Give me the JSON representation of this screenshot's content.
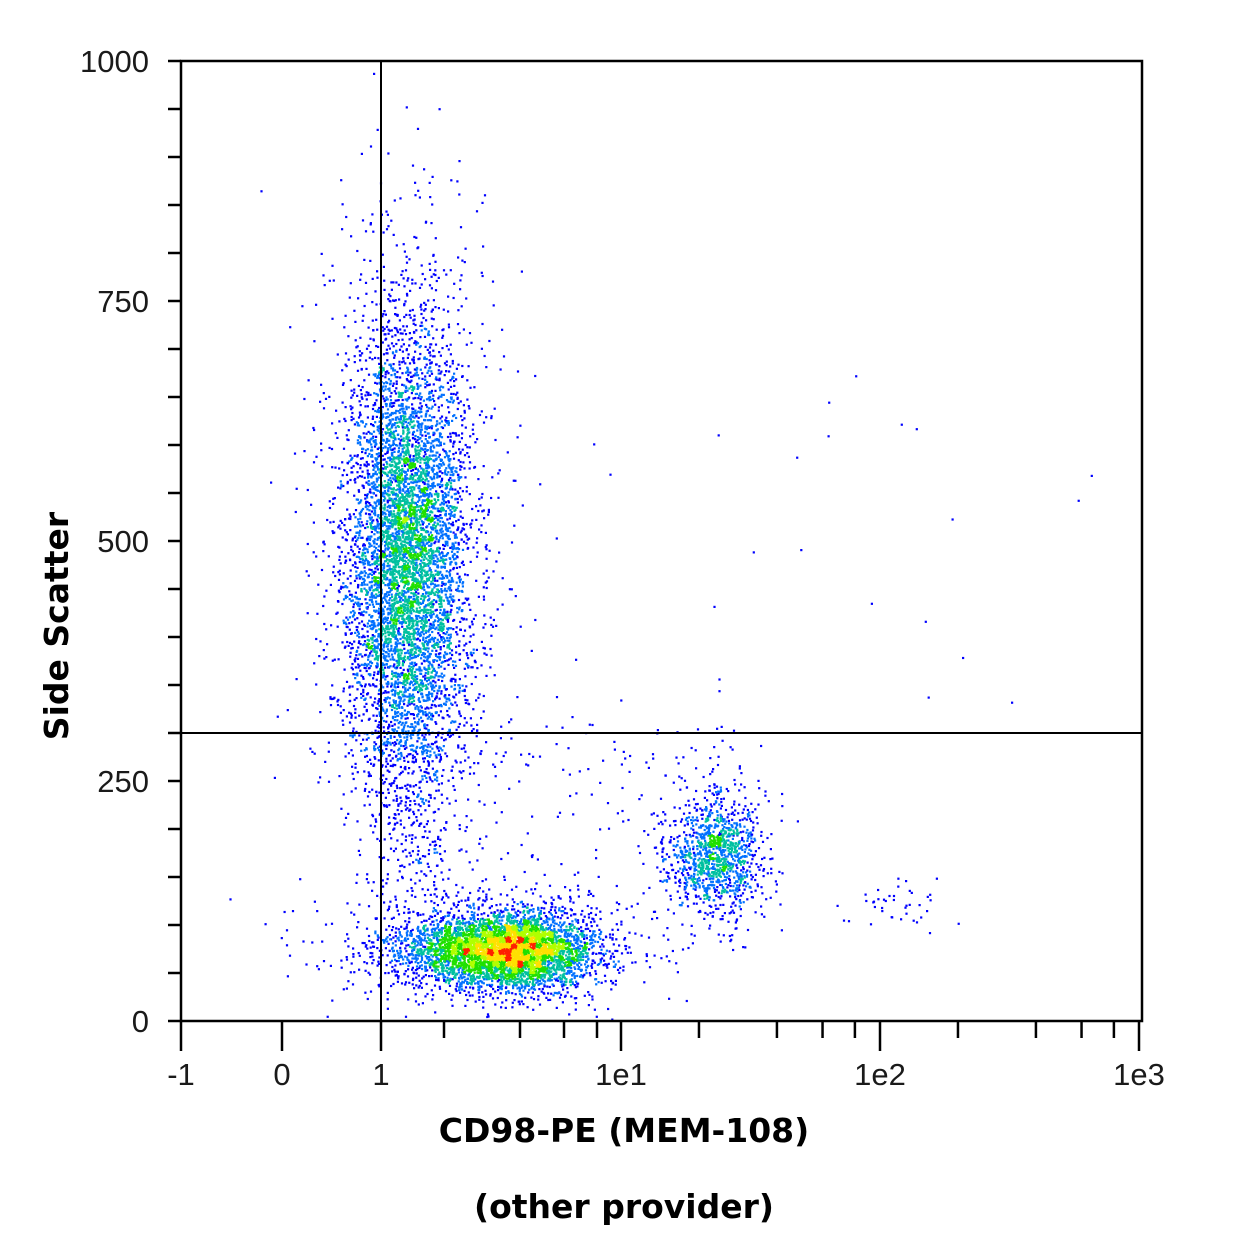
{
  "chart_data": {
    "type": "scatter",
    "style": "density-colored flow cytometry dot plot",
    "xlabel": "CD98-PE (MEM-108)",
    "xlabel_line2": "(other provider)",
    "ylabel": "Side Scatter",
    "xlim": [
      -1,
      1000
    ],
    "ylim": [
      0,
      1000
    ],
    "x_scale": "logicle (linear near 0, log above 10)",
    "x_ticks": [
      {
        "value": -1,
        "label": "-1"
      },
      {
        "value": 0,
        "label": "0"
      },
      {
        "value": 1,
        "label": "1"
      },
      {
        "value": 10,
        "label": "1e1"
      },
      {
        "value": 100,
        "label": "1e2"
      },
      {
        "value": 1000,
        "label": "1e3"
      }
    ],
    "x_minor_ticks": [
      2,
      4,
      6,
      8,
      20,
      40,
      60,
      80,
      200,
      400,
      600,
      800
    ],
    "y_ticks": [
      {
        "value": 0,
        "label": "0"
      },
      {
        "value": 250,
        "label": "250"
      },
      {
        "value": 500,
        "label": "500"
      },
      {
        "value": 750,
        "label": "750"
      },
      {
        "value": 1000,
        "label": "1000"
      }
    ],
    "y_minor_step": 50,
    "gates": {
      "x": 1,
      "y": 300
    },
    "populations": [
      {
        "x_center": 1.4,
        "y_center": 480,
        "count": 7000
      },
      {
        "x_center": 3.6,
        "y_center": 75,
        "count": 5000
      },
      {
        "x_center": 23,
        "y_center": 175,
        "count": 1200
      },
      {
        "x_center": 115,
        "y_center": 120,
        "count": 40
      }
    ],
    "colormap": [
      "#0000ff",
      "#0070ff",
      "#00c0a0",
      "#20e000",
      "#b0ff00",
      "#ffe000",
      "#ff2000"
    ],
    "grid": false,
    "legend": "none"
  }
}
